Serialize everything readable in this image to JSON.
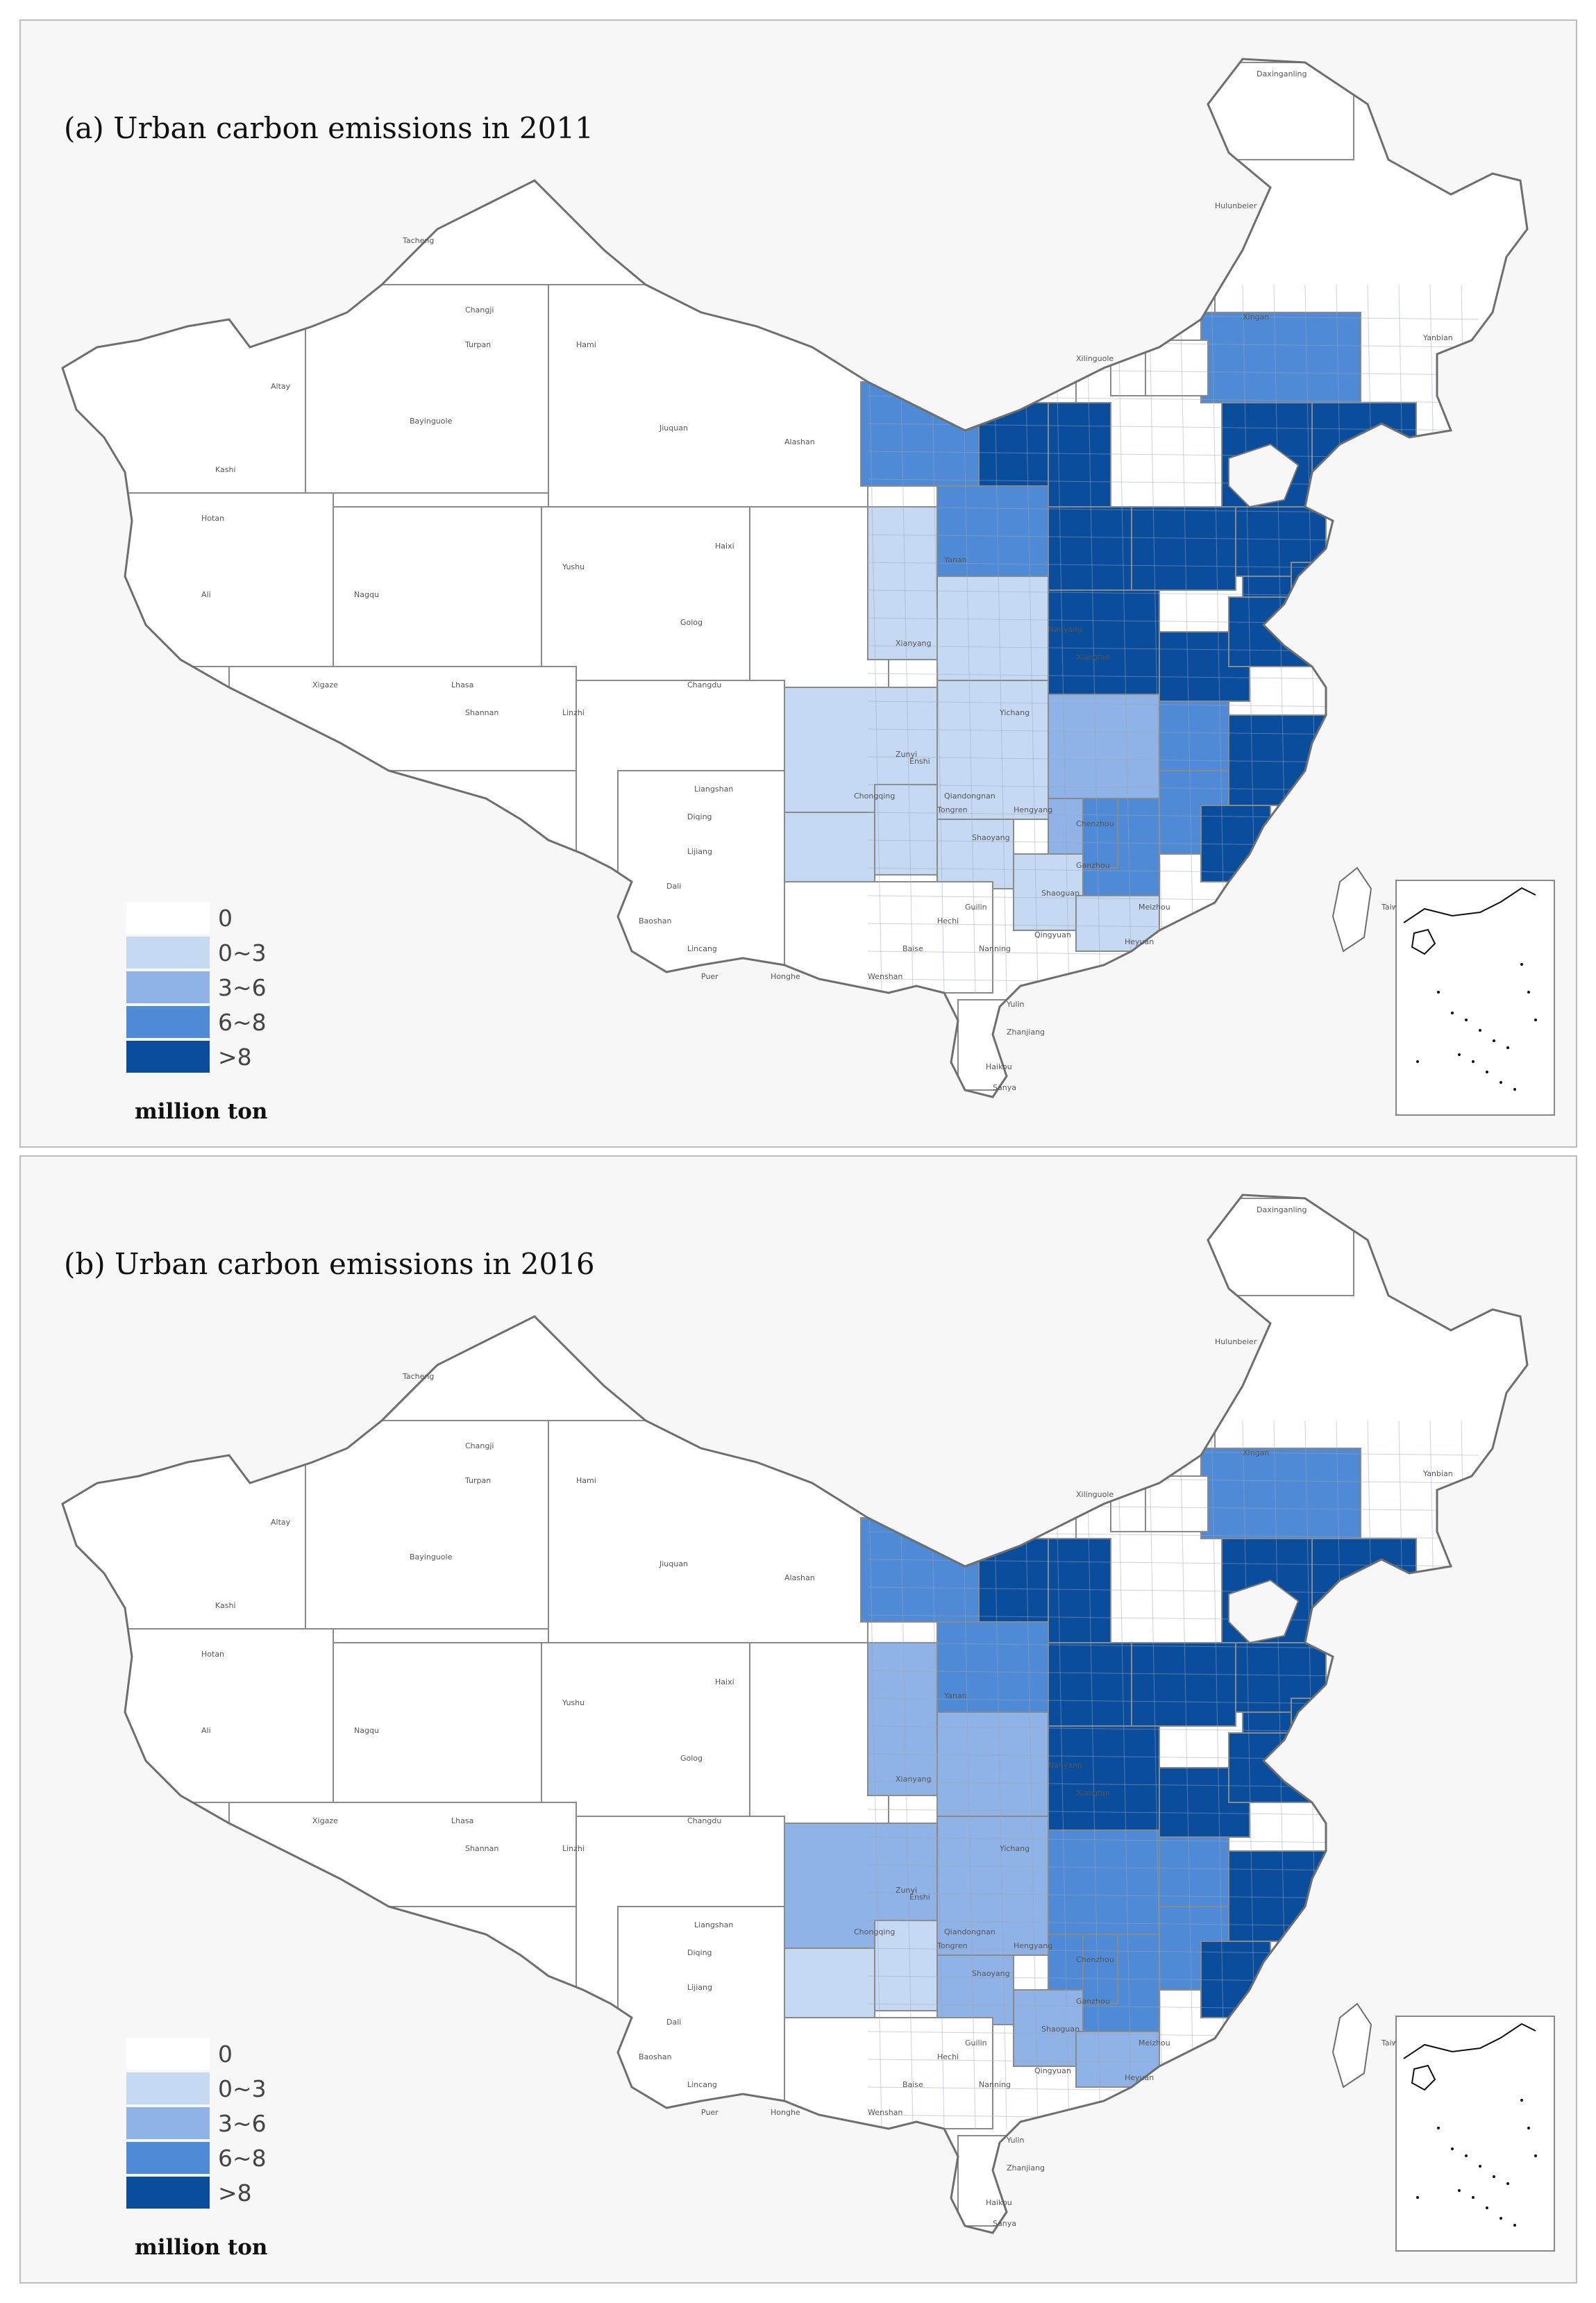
{
  "colors": {
    "c0": "#ffffff",
    "c1": "#c6d9f2",
    "c2": "#8fb3e6",
    "c3": "#4f8ad6",
    "c4": "#0a4d9c",
    "border": "#8a8a8a"
  },
  "legend": {
    "items": [
      {
        "label": "0",
        "color": "#ffffff"
      },
      {
        "label": "0~3",
        "color": "#c6d9f2"
      },
      {
        "label": "3~6",
        "color": "#8fb3e6"
      },
      {
        "label": "6~8",
        "color": "#4f8ad6"
      },
      {
        "label": ">8",
        "color": "#0a4d9c"
      }
    ],
    "unit": "million ton"
  },
  "panels": [
    {
      "title": "(a) Urban carbon emissions in 2011",
      "region_classes": [
        0,
        0,
        0,
        0,
        0,
        0,
        0,
        0,
        0,
        0,
        0,
        3,
        4,
        4,
        0,
        3,
        4,
        4,
        4,
        4,
        4,
        4,
        3,
        4,
        4,
        3,
        1,
        1,
        2,
        3,
        4,
        4,
        3,
        1,
        1,
        2,
        3,
        4,
        4,
        1,
        1,
        1,
        1,
        1,
        0,
        0,
        0,
        0,
        0,
        0,
        0,
        0
      ]
    },
    {
      "title": "(b) Urban carbon emissions in 2016",
      "region_classes": [
        0,
        0,
        0,
        0,
        0,
        0,
        0,
        0,
        0,
        0,
        0,
        3,
        4,
        4,
        0,
        3,
        4,
        4,
        4,
        4,
        4,
        4,
        3,
        4,
        4,
        3,
        2,
        2,
        3,
        3,
        4,
        4,
        3,
        2,
        2,
        3,
        3,
        4,
        4,
        1,
        1,
        2,
        2,
        2,
        0,
        0,
        0,
        0,
        0,
        0,
        0,
        0
      ]
    }
  ],
  "place_labels": [
    "Daxinganling",
    "Hulunbeier",
    "Xingan",
    "Xilinguole",
    "Yanbian",
    "Altay",
    "Tacheng",
    "Changji",
    "Turpan",
    "Hami",
    "Bayinguole",
    "Kashi",
    "Hotan",
    "Ali",
    "Nagqu",
    "Xigaze",
    "Lhasa",
    "Shannan",
    "Linzhi",
    "Changdu",
    "Yushu",
    "Golog",
    "Haixi",
    "Jiuquan",
    "Alashan",
    "Yanan",
    "Xianyang",
    "Nanyang",
    "Xiangfan",
    "Yichang",
    "Enshi",
    "Tongren",
    "Qiandongnan",
    "Zunyi",
    "Chongqing",
    "Liangshan",
    "Diqing",
    "Lijiang",
    "Dali",
    "Baoshan",
    "Lincang",
    "Puer",
    "Honghe",
    "Wenshan",
    "Baise",
    "Hechi",
    "Guilin",
    "Nanning",
    "Yulin",
    "Zhanjiang",
    "Haikou",
    "Sanya",
    "Ganzhou",
    "Chenzhou",
    "Shaoyang",
    "Hengyang",
    "Meizhou",
    "Shaoguan",
    "Qingyuan",
    "Heyuan",
    "Taiwan"
  ]
}
